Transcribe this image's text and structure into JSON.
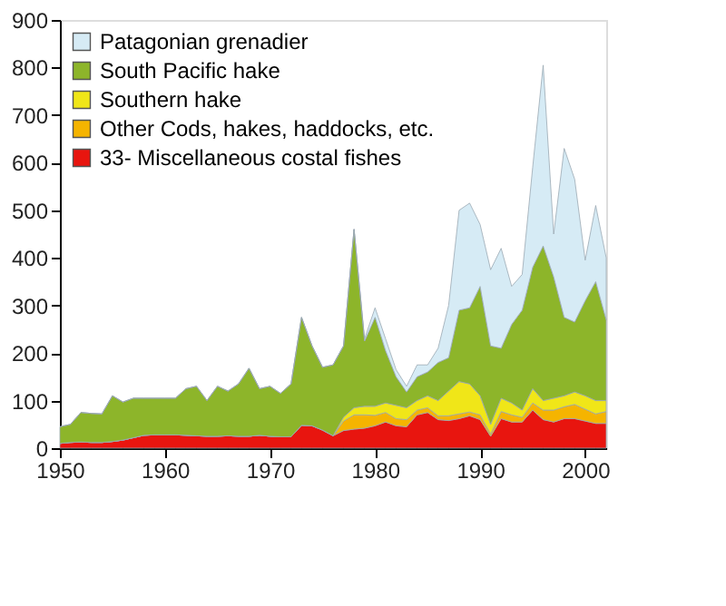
{
  "chart_data": {
    "type": "area",
    "stacked": true,
    "x": [
      1950,
      1951,
      1952,
      1953,
      1954,
      1955,
      1956,
      1957,
      1958,
      1959,
      1960,
      1961,
      1962,
      1963,
      1964,
      1965,
      1966,
      1967,
      1968,
      1969,
      1970,
      1971,
      1972,
      1973,
      1974,
      1975,
      1976,
      1977,
      1978,
      1979,
      1980,
      1981,
      1982,
      1983,
      1984,
      1985,
      1986,
      1987,
      1988,
      1989,
      1990,
      1991,
      1992,
      1993,
      1994,
      1995,
      1996,
      1997,
      1998,
      1999,
      2000,
      2001,
      2002
    ],
    "series": [
      {
        "name": "33- Miscellaneous costal fishes",
        "color": "#e8150f",
        "values": [
          10,
          12,
          13,
          12,
          12,
          14,
          17,
          22,
          27,
          28,
          28,
          28,
          27,
          26,
          25,
          25,
          26,
          25,
          25,
          27,
          25,
          24,
          24,
          48,
          47,
          38,
          26,
          37,
          40,
          42,
          47,
          55,
          47,
          45,
          70,
          75,
          60,
          58,
          62,
          68,
          60,
          25,
          62,
          55,
          55,
          80,
          60,
          55,
          62,
          62,
          57,
          52,
          52
        ]
      },
      {
        "name": "Other Cods, hakes, haddocks, etc.",
        "color": "#f5b400",
        "values": [
          0,
          0,
          0,
          0,
          0,
          0,
          0,
          0,
          0,
          0,
          0,
          0,
          0,
          0,
          0,
          0,
          0,
          0,
          0,
          0,
          0,
          0,
          0,
          0,
          0,
          0,
          0,
          20,
          30,
          28,
          22,
          20,
          15,
          15,
          10,
          10,
          8,
          10,
          10,
          8,
          10,
          5,
          15,
          15,
          10,
          15,
          20,
          25,
          25,
          30,
          25,
          20,
          25
        ]
      },
      {
        "name": "Southern hake",
        "color": "#f0e618",
        "values": [
          0,
          0,
          0,
          0,
          0,
          0,
          0,
          0,
          0,
          0,
          0,
          0,
          0,
          0,
          0,
          0,
          0,
          0,
          0,
          0,
          0,
          0,
          0,
          0,
          0,
          0,
          0,
          8,
          15,
          18,
          19,
          20,
          28,
          25,
          20,
          25,
          32,
          52,
          68,
          59,
          40,
          20,
          28,
          25,
          15,
          30,
          20,
          25,
          23,
          26,
          28,
          28,
          23
        ]
      },
      {
        "name": "South Pacific hake",
        "color": "#8db52a",
        "values": [
          35,
          38,
          62,
          61,
          60,
          96,
          80,
          83,
          78,
          77,
          77,
          77,
          98,
          104,
          75,
          105,
          94,
          110,
          143,
          98,
          105,
          91,
          111,
          227,
          168,
          132,
          149,
          150,
          375,
          137,
          187,
          110,
          60,
          33,
          50,
          50,
          80,
          70,
          150,
          160,
          230,
          165,
          105,
          165,
          210,
          255,
          325,
          255,
          165,
          147,
          200,
          250,
          170
        ]
      },
      {
        "name": "Patagonian grenadier",
        "color": "#d6ebf5",
        "values": [
          0,
          0,
          0,
          0,
          0,
          0,
          0,
          0,
          0,
          0,
          0,
          0,
          0,
          0,
          0,
          0,
          0,
          0,
          0,
          0,
          0,
          0,
          0,
          0,
          0,
          0,
          0,
          0,
          0,
          5,
          20,
          25,
          15,
          12,
          25,
          15,
          30,
          110,
          210,
          220,
          130,
          160,
          210,
          80,
          75,
          210,
          380,
          90,
          355,
          300,
          85,
          160,
          130
        ]
      }
    ],
    "xlim": [
      1950,
      2002
    ],
    "xticks": [
      1950,
      1960,
      1970,
      1980,
      1990,
      2000
    ],
    "ylim": [
      0,
      900
    ],
    "yticks": [
      0,
      100,
      200,
      300,
      400,
      500,
      600,
      700,
      800,
      900
    ],
    "grid": false,
    "legend": "top left"
  }
}
